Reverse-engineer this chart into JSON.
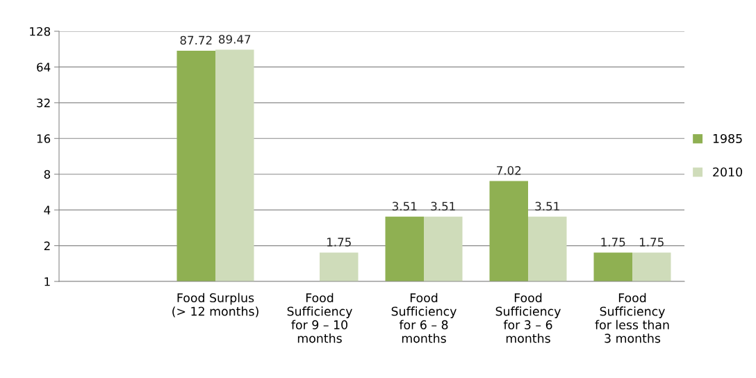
{
  "chart_data": {
    "type": "bar",
    "categories": [
      null,
      "Food Surplus\n(> 12 months)",
      "Food\nSufficiency\nfor 9 – 10\nmonths",
      "Food\nSufficiency\nfor 6 – 8\nmonths",
      "Food\nSufficiency\nfor 3 – 6\nmonths",
      "Food\nSufficiency\nfor less than\n3 months"
    ],
    "series": [
      {
        "name": "1985",
        "color": "#8fb052",
        "values": [
          null,
          87.72,
          null,
          3.51,
          7.02,
          1.75
        ]
      },
      {
        "name": "2010",
        "color": "#cfdcba",
        "values": [
          null,
          89.47,
          1.75,
          3.51,
          3.51,
          1.75
        ]
      }
    ],
    "log": "y",
    "ylim": [
      1,
      128
    ],
    "yticks": [
      1,
      2,
      4,
      8,
      16,
      32,
      64,
      128
    ],
    "grid": "y",
    "legend": "right",
    "data_labels": true
  }
}
